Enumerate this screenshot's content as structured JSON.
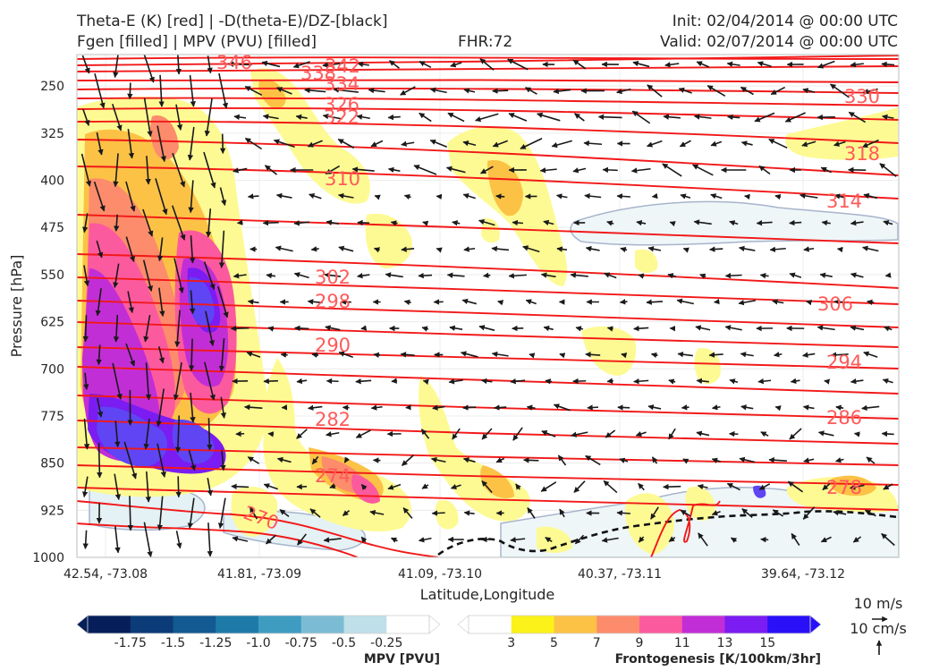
{
  "header": {
    "line1_left": "Theta-E (K) [red] | -D(theta-E)/DZ-[black]",
    "line2_left": "Fgen [filled] | MPV (PVU) [filled]",
    "fhr": "FHR:72",
    "init": "Init: 02/04/2014 @ 00:00 UTC",
    "valid": "Valid: 02/07/2014 @ 00:00 UTC"
  },
  "chart_data": {
    "type": "cross-section",
    "x_ticks": [
      "42.54, -73.08",
      "41.81, -73.09",
      "41.09, -73.10",
      "40.37, -73.11",
      "39.64, -73.12"
    ],
    "y_ticks": [
      250,
      325,
      400,
      475,
      550,
      625,
      700,
      775,
      850,
      925,
      1000
    ],
    "ylim": [
      1000,
      200
    ],
    "xlabel": "Latitude,Longitude",
    "ylabel": "Pressure [hPa]",
    "grid": true,
    "theta_e_labels": [
      "346",
      "338",
      "342",
      "334",
      "326",
      "322",
      "330",
      "318",
      "310",
      "314",
      "302",
      "298",
      "306",
      "290",
      "294",
      "282",
      "286",
      "274",
      "278",
      "270"
    ],
    "mpv_colorbar": {
      "title": "MPV [PVU]",
      "ticks": [
        "-1.75",
        "-1.5",
        "-1.25",
        "-1.0",
        "-0.75",
        "-0.5",
        "-0.25"
      ],
      "colors": [
        "#061e5a",
        "#0b3c78",
        "#125a91",
        "#1e7ba8",
        "#3e9cc0",
        "#7bbcd4",
        "#bfdfe9",
        "#ffffff"
      ]
    },
    "fgen_colorbar": {
      "title": "Frontogenesis [K/100km/3hr]",
      "ticks": [
        "3",
        "5",
        "7",
        "9",
        "11",
        "13",
        "15"
      ],
      "colors": [
        "#ffffff",
        "#fbf21a",
        "#fcc246",
        "#fc8c6c",
        "#fc5a9e",
        "#c22ed6",
        "#7a1cf2",
        "#2a10f8"
      ]
    },
    "vector_reference": [
      "10 m/s",
      "10 cm/s"
    ]
  }
}
